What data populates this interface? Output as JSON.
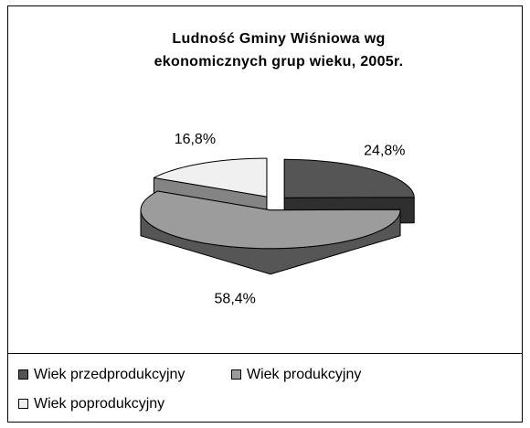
{
  "chart_data": {
    "type": "pie3d",
    "title": "Ludność Gminy Wiśniowa wg ekonomicznych grup wieku, 2005r.",
    "categories": [
      "Wiek przedprodukcyjny",
      "Wiek produkcyjny",
      "Wiek poprodukcyjny"
    ],
    "values": [
      24.8,
      58.4,
      16.8
    ],
    "value_labels": [
      "24,8%",
      "58,4%",
      "16,8%"
    ],
    "colors": [
      "#555555",
      "#9c9c9c",
      "#f0f0f0"
    ],
    "legend": "bottom"
  }
}
